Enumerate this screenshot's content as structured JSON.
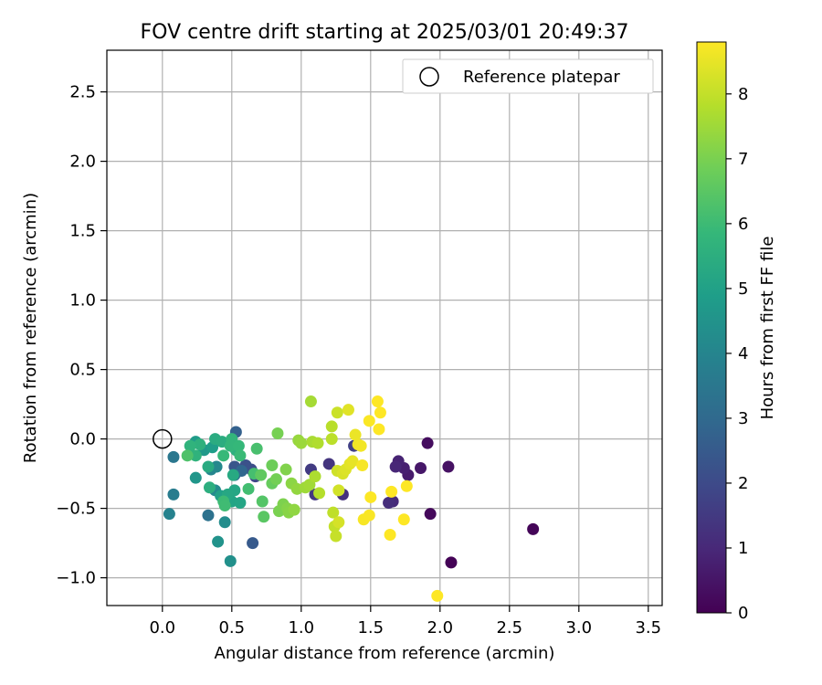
{
  "chart_data": {
    "type": "scatter",
    "title": "FOV centre drift starting at 2025/03/01 20:49:37",
    "xlabel": "Angular distance from reference (arcmin)",
    "ylabel": "Rotation from reference (arcmin)",
    "xlim": [
      -0.4,
      3.6
    ],
    "ylim": [
      -1.2,
      2.8
    ],
    "x_ticks": [
      0.0,
      0.5,
      1.0,
      1.5,
      2.0,
      2.5,
      3.0,
      3.5
    ],
    "x_tick_labels": [
      "0.0",
      "0.5",
      "1.0",
      "1.5",
      "2.0",
      "2.5",
      "3.0",
      "3.5"
    ],
    "y_ticks": [
      -1.0,
      -0.5,
      0.0,
      0.5,
      1.0,
      1.5,
      2.0,
      2.5
    ],
    "y_tick_labels": [
      "−1.0",
      "−0.5",
      "0.0",
      "0.5",
      "1.0",
      "1.5",
      "2.0",
      "2.5"
    ],
    "grid": true,
    "legend": {
      "placement": "top-right",
      "entries": [
        {
          "label": "Reference platepar",
          "marker": "open-circle"
        }
      ]
    },
    "colorbar": {
      "label": "Hours from first FF file",
      "colormap": "viridis",
      "range": [
        0,
        8.8
      ],
      "ticks": [
        0,
        1,
        2,
        3,
        4,
        5,
        6,
        7,
        8
      ],
      "tick_labels": [
        "0",
        "1",
        "2",
        "3",
        "4",
        "5",
        "6",
        "7",
        "8"
      ]
    },
    "reference_point": {
      "x": 0.0,
      "y": 0.0
    },
    "points": [
      {
        "x": 2.08,
        "y": -0.89,
        "c": 0.05
      },
      {
        "x": 2.67,
        "y": -0.65,
        "c": 0.1
      },
      {
        "x": 1.93,
        "y": -0.54,
        "c": 0.2
      },
      {
        "x": 1.91,
        "y": -0.03,
        "c": 0.3
      },
      {
        "x": 2.06,
        "y": -0.2,
        "c": 0.4
      },
      {
        "x": 1.86,
        "y": -0.21,
        "c": 0.55
      },
      {
        "x": 1.77,
        "y": -0.26,
        "c": 0.65
      },
      {
        "x": 1.74,
        "y": -0.21,
        "c": 0.75
      },
      {
        "x": 1.7,
        "y": -0.16,
        "c": 0.85
      },
      {
        "x": 1.68,
        "y": -0.2,
        "c": 0.95
      },
      {
        "x": 1.66,
        "y": -0.45,
        "c": 1.05
      },
      {
        "x": 1.63,
        "y": -0.46,
        "c": 1.15
      },
      {
        "x": 1.3,
        "y": -0.4,
        "c": 1.25
      },
      {
        "x": 1.2,
        "y": -0.18,
        "c": 1.35
      },
      {
        "x": 1.1,
        "y": -0.4,
        "c": 1.45
      },
      {
        "x": 1.07,
        "y": -0.22,
        "c": 1.55
      },
      {
        "x": 1.38,
        "y": -0.05,
        "c": 1.7
      },
      {
        "x": 0.67,
        "y": -0.27,
        "c": 1.9
      },
      {
        "x": 0.64,
        "y": -0.22,
        "c": 2.05
      },
      {
        "x": 0.6,
        "y": -0.19,
        "c": 2.2
      },
      {
        "x": 0.52,
        "y": -0.2,
        "c": 2.35
      },
      {
        "x": 0.65,
        "y": -0.75,
        "c": 2.5
      },
      {
        "x": 0.53,
        "y": 0.05,
        "c": 2.7
      },
      {
        "x": 0.57,
        "y": -0.23,
        "c": 2.9
      },
      {
        "x": 0.52,
        "y": -0.26,
        "c": 3.1
      },
      {
        "x": 0.33,
        "y": -0.55,
        "c": 3.3
      },
      {
        "x": 0.08,
        "y": -0.13,
        "c": 3.5
      },
      {
        "x": 0.08,
        "y": -0.4,
        "c": 3.7
      },
      {
        "x": 0.05,
        "y": -0.54,
        "c": 3.9
      },
      {
        "x": 0.35,
        "y": -0.22,
        "c": 4.0
      },
      {
        "x": 0.39,
        "y": -0.2,
        "c": 4.1
      },
      {
        "x": 0.38,
        "y": -0.37,
        "c": 4.2
      },
      {
        "x": 0.45,
        "y": -0.6,
        "c": 4.3
      },
      {
        "x": 0.49,
        "y": -0.88,
        "c": 4.4
      },
      {
        "x": 0.4,
        "y": -0.74,
        "c": 4.5
      },
      {
        "x": 0.24,
        "y": -0.28,
        "c": 4.6
      },
      {
        "x": 0.3,
        "y": -0.08,
        "c": 4.7
      },
      {
        "x": 0.24,
        "y": -0.02,
        "c": 4.8
      },
      {
        "x": 0.36,
        "y": -0.06,
        "c": 4.9
      },
      {
        "x": 0.42,
        "y": -0.41,
        "c": 5.0
      },
      {
        "x": 0.5,
        "y": -0.45,
        "c": 5.1
      },
      {
        "x": 0.56,
        "y": -0.46,
        "c": 5.15
      },
      {
        "x": 0.52,
        "y": -0.37,
        "c": 5.2
      },
      {
        "x": 0.47,
        "y": -0.4,
        "c": 5.25
      },
      {
        "x": 0.51,
        "y": -0.26,
        "c": 5.3
      },
      {
        "x": 0.33,
        "y": -0.2,
        "c": 5.35
      },
      {
        "x": 0.38,
        "y": 0.0,
        "c": 5.4
      },
      {
        "x": 0.43,
        "y": -0.02,
        "c": 5.45
      },
      {
        "x": 0.34,
        "y": -0.35,
        "c": 5.5
      },
      {
        "x": 0.53,
        "y": -0.08,
        "c": 5.55
      },
      {
        "x": 0.27,
        "y": -0.04,
        "c": 5.6
      },
      {
        "x": 0.24,
        "y": -0.12,
        "c": 5.65
      },
      {
        "x": 0.2,
        "y": -0.05,
        "c": 5.7
      },
      {
        "x": 0.5,
        "y": 0.0,
        "c": 5.75
      },
      {
        "x": 0.49,
        "y": -0.05,
        "c": 5.8
      },
      {
        "x": 0.55,
        "y": -0.05,
        "c": 5.85
      },
      {
        "x": 0.44,
        "y": -0.12,
        "c": 5.9
      },
      {
        "x": 0.56,
        "y": -0.12,
        "c": 5.95
      },
      {
        "x": 0.44,
        "y": -0.45,
        "c": 6.0
      },
      {
        "x": 0.45,
        "y": -0.48,
        "c": 6.05
      },
      {
        "x": 0.62,
        "y": -0.36,
        "c": 6.1
      },
      {
        "x": 0.66,
        "y": -0.25,
        "c": 6.15
      },
      {
        "x": 0.68,
        "y": -0.07,
        "c": 6.2
      },
      {
        "x": 0.18,
        "y": -0.12,
        "c": 6.3
      },
      {
        "x": 0.72,
        "y": -0.45,
        "c": 6.4
      },
      {
        "x": 0.73,
        "y": -0.56,
        "c": 6.5
      },
      {
        "x": 0.71,
        "y": -0.26,
        "c": 6.6
      },
      {
        "x": 0.79,
        "y": -0.32,
        "c": 6.7
      },
      {
        "x": 0.79,
        "y": -0.19,
        "c": 6.8
      },
      {
        "x": 0.82,
        "y": -0.29,
        "c": 6.9
      },
      {
        "x": 0.83,
        "y": 0.04,
        "c": 6.95
      },
      {
        "x": 0.84,
        "y": -0.52,
        "c": 7.0
      },
      {
        "x": 0.87,
        "y": -0.47,
        "c": 7.05
      },
      {
        "x": 0.89,
        "y": -0.22,
        "c": 7.1
      },
      {
        "x": 0.9,
        "y": -0.5,
        "c": 7.15
      },
      {
        "x": 0.91,
        "y": -0.53,
        "c": 7.2
      },
      {
        "x": 0.93,
        "y": -0.32,
        "c": 7.25
      },
      {
        "x": 0.95,
        "y": -0.51,
        "c": 7.3
      },
      {
        "x": 0.97,
        "y": -0.36,
        "c": 7.35
      },
      {
        "x": 0.98,
        "y": -0.01,
        "c": 7.4
      },
      {
        "x": 1.0,
        "y": -0.03,
        "c": 7.45
      },
      {
        "x": 1.03,
        "y": -0.35,
        "c": 7.5
      },
      {
        "x": 1.06,
        "y": -0.33,
        "c": 7.55
      },
      {
        "x": 1.07,
        "y": 0.27,
        "c": 7.6
      },
      {
        "x": 1.08,
        "y": -0.02,
        "c": 7.65
      },
      {
        "x": 1.1,
        "y": -0.27,
        "c": 7.7
      },
      {
        "x": 1.12,
        "y": -0.03,
        "c": 7.75
      },
      {
        "x": 1.13,
        "y": -0.39,
        "c": 7.8
      },
      {
        "x": 1.22,
        "y": 0.09,
        "c": 7.85
      },
      {
        "x": 1.22,
        "y": 0.0,
        "c": 7.9
      },
      {
        "x": 1.23,
        "y": -0.53,
        "c": 7.95
      },
      {
        "x": 1.24,
        "y": -0.63,
        "c": 8.0
      },
      {
        "x": 1.25,
        "y": -0.7,
        "c": 8.05
      },
      {
        "x": 1.26,
        "y": 0.19,
        "c": 8.1
      },
      {
        "x": 1.26,
        "y": -0.23,
        "c": 8.15
      },
      {
        "x": 1.27,
        "y": -0.37,
        "c": 8.2
      },
      {
        "x": 1.27,
        "y": -0.6,
        "c": 8.25
      },
      {
        "x": 1.3,
        "y": -0.25,
        "c": 8.3
      },
      {
        "x": 1.32,
        "y": -0.22,
        "c": 8.35
      },
      {
        "x": 1.34,
        "y": 0.21,
        "c": 8.4
      },
      {
        "x": 1.35,
        "y": -0.18,
        "c": 8.45
      },
      {
        "x": 1.37,
        "y": -0.16,
        "c": 8.5
      },
      {
        "x": 1.39,
        "y": 0.03,
        "c": 8.55
      },
      {
        "x": 1.41,
        "y": -0.04,
        "c": 8.6
      },
      {
        "x": 1.43,
        "y": -0.05,
        "c": 8.65
      },
      {
        "x": 1.44,
        "y": -0.19,
        "c": 8.7
      },
      {
        "x": 1.45,
        "y": -0.58,
        "c": 8.72
      },
      {
        "x": 1.49,
        "y": -0.55,
        "c": 8.74
      },
      {
        "x": 1.49,
        "y": 0.13,
        "c": 8.76
      },
      {
        "x": 1.5,
        "y": -0.42,
        "c": 8.78
      },
      {
        "x": 1.55,
        "y": 0.27,
        "c": 8.8
      },
      {
        "x": 1.56,
        "y": 0.07,
        "c": 8.8
      },
      {
        "x": 1.57,
        "y": 0.19,
        "c": 8.8
      },
      {
        "x": 1.64,
        "y": -0.69,
        "c": 8.8
      },
      {
        "x": 1.65,
        "y": -0.38,
        "c": 8.8
      },
      {
        "x": 1.74,
        "y": -0.58,
        "c": 8.8
      },
      {
        "x": 1.76,
        "y": -0.34,
        "c": 8.8
      },
      {
        "x": 1.98,
        "y": -1.13,
        "c": 8.8
      }
    ]
  }
}
